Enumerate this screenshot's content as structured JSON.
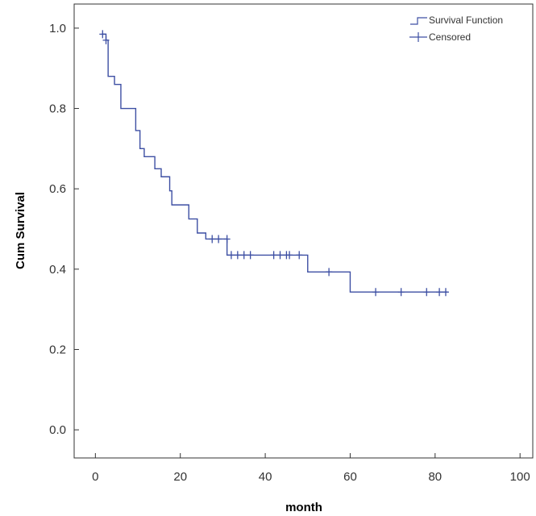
{
  "chart_data": {
    "type": "line",
    "title": "",
    "xlabel": "month",
    "ylabel": "Cum Survival",
    "xlim": [
      -5,
      103
    ],
    "ylim": [
      -0.07,
      1.06
    ],
    "xticks": [
      0,
      20,
      40,
      60,
      80,
      100
    ],
    "yticks": [
      0.0,
      0.2,
      0.4,
      0.6,
      0.8,
      1.0
    ],
    "xtick_labels": [
      "0",
      "20",
      "40",
      "60",
      "80",
      "100"
    ],
    "ytick_labels": [
      "0.0",
      "0.2",
      "0.4",
      "0.6",
      "0.8",
      "1.0"
    ],
    "grid": false,
    "legend_position": "top-right",
    "series_color": "#3d4fa3",
    "series": [
      {
        "name": "Survival Function",
        "style": "step",
        "points": [
          [
            1.5,
            0.985
          ],
          [
            2.5,
            0.97
          ],
          [
            3.0,
            0.88
          ],
          [
            4.5,
            0.86
          ],
          [
            6.0,
            0.8
          ],
          [
            9.5,
            0.745
          ],
          [
            10.5,
            0.7
          ],
          [
            11.5,
            0.68
          ],
          [
            14.0,
            0.65
          ],
          [
            15.5,
            0.63
          ],
          [
            17.5,
            0.595
          ],
          [
            18.0,
            0.56
          ],
          [
            22.0,
            0.525
          ],
          [
            24.0,
            0.49
          ],
          [
            26.0,
            0.475
          ],
          [
            31.0,
            0.435
          ],
          [
            50.0,
            0.393
          ],
          [
            60.0,
            0.343
          ],
          [
            83.0,
            0.343
          ]
        ]
      },
      {
        "name": "Censored",
        "style": "markers",
        "points": [
          [
            1.7,
            0.985
          ],
          [
            2.5,
            0.97
          ],
          [
            27.5,
            0.475
          ],
          [
            29.0,
            0.475
          ],
          [
            31.0,
            0.475
          ],
          [
            32.0,
            0.435
          ],
          [
            33.5,
            0.435
          ],
          [
            35.0,
            0.435
          ],
          [
            36.5,
            0.435
          ],
          [
            42.0,
            0.435
          ],
          [
            43.5,
            0.435
          ],
          [
            45.0,
            0.435
          ],
          [
            45.7,
            0.435
          ],
          [
            48.0,
            0.435
          ],
          [
            55.0,
            0.393
          ],
          [
            66.0,
            0.343
          ],
          [
            72.0,
            0.343
          ],
          [
            78.0,
            0.343
          ],
          [
            81.0,
            0.343
          ],
          [
            82.5,
            0.343
          ]
        ]
      }
    ]
  }
}
